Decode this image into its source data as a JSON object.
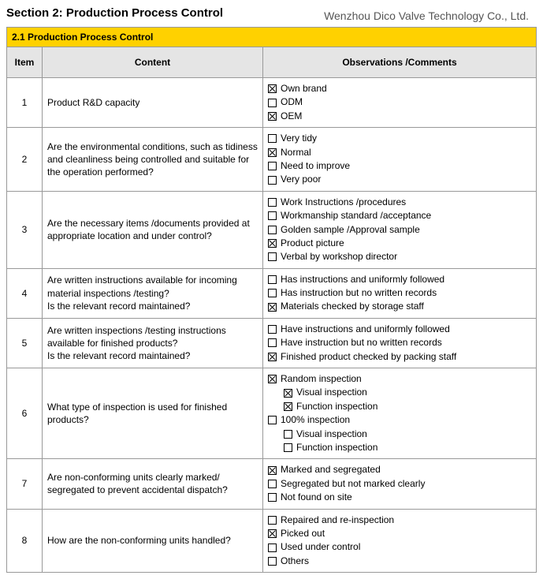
{
  "header": {
    "section_title": "Section 2: Production Process Control",
    "company_name": "Wenzhou Dico Valve Technology Co., Ltd."
  },
  "table": {
    "banner": "2.1 Production Process Control",
    "columns": {
      "item": "Item",
      "content": "Content",
      "obs": "Observations /Comments"
    },
    "rows": [
      {
        "item": "1",
        "content": "Product R&D capacity",
        "options": [
          {
            "label": "Own brand",
            "checked": true
          },
          {
            "label": "ODM",
            "checked": false
          },
          {
            "label": "OEM",
            "checked": true
          }
        ]
      },
      {
        "item": "2",
        "content": "Are the environmental conditions, such as tidiness and cleanliness being controlled and suitable for the operation performed?",
        "options": [
          {
            "label": "Very tidy",
            "checked": false
          },
          {
            "label": "Normal",
            "checked": true
          },
          {
            "label": "Need to improve",
            "checked": false
          },
          {
            "label": "Very poor",
            "checked": false
          }
        ]
      },
      {
        "item": "3",
        "content": "Are the necessary items /documents provided at appropriate location and under control?",
        "options": [
          {
            "label": "Work Instructions /procedures",
            "checked": false
          },
          {
            "label": "Workmanship standard /acceptance",
            "checked": false
          },
          {
            "label": "Golden sample /Approval sample",
            "checked": false
          },
          {
            "label": "Product picture",
            "checked": true
          },
          {
            "label": "Verbal by workshop director",
            "checked": false
          }
        ]
      },
      {
        "item": "4",
        "content": "Are written instructions available for incoming material inspections /testing?\nIs the relevant record maintained?",
        "options": [
          {
            "label": "Has instructions and uniformly followed",
            "checked": false
          },
          {
            "label": "Has instruction but no written records",
            "checked": false
          },
          {
            "label": "Materials checked by storage staff",
            "checked": true
          }
        ]
      },
      {
        "item": "5",
        "content": "Are written inspections /testing instructions available for finished products?\nIs the relevant record maintained?",
        "options": [
          {
            "label": "Have instructions and uniformly followed",
            "checked": false
          },
          {
            "label": "Have instruction but no written records",
            "checked": false
          },
          {
            "label": "Finished product checked by packing staff",
            "checked": true
          }
        ]
      },
      {
        "item": "6",
        "content": "What type of inspection is used for finished products?",
        "options": [
          {
            "label": "Random inspection",
            "checked": true
          },
          {
            "label": "Visual inspection",
            "checked": true,
            "indent": true
          },
          {
            "label": "Function inspection",
            "checked": true,
            "indent": true
          },
          {
            "label": "100% inspection",
            "checked": false
          },
          {
            "label": "Visual inspection",
            "checked": false,
            "indent": true
          },
          {
            "label": "Function inspection",
            "checked": false,
            "indent": true
          }
        ]
      },
      {
        "item": "7",
        "content": "Are non-conforming units clearly marked/ segregated to prevent accidental dispatch?",
        "options": [
          {
            "label": "Marked and segregated",
            "checked": true
          },
          {
            "label": "Segregated but not marked clearly",
            "checked": false
          },
          {
            "label": "Not found on site",
            "checked": false
          }
        ]
      },
      {
        "item": "8",
        "content": "How are the non-conforming units handled?",
        "options": [
          {
            "label": "Repaired and re-inspection",
            "checked": false
          },
          {
            "label": "Picked out",
            "checked": true
          },
          {
            "label": "Used under control",
            "checked": false
          },
          {
            "label": "Others",
            "checked": false
          }
        ]
      }
    ]
  }
}
